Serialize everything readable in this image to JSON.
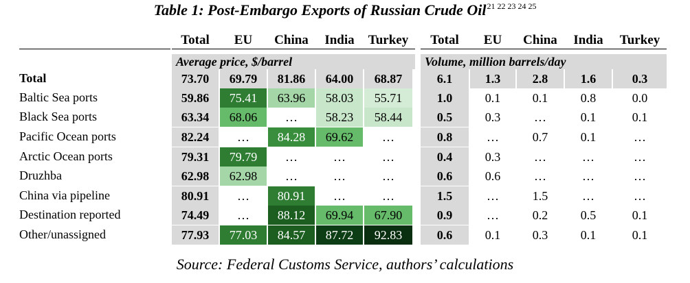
{
  "title": "Table 1: Post-Embargo Exports of Russian Crude Oil",
  "footnotes": "21 22 23 24 25",
  "column_headers": [
    "Total",
    "EU",
    "China",
    "India",
    "Turkey",
    "Total",
    "EU",
    "China",
    "India",
    "Turkey"
  ],
  "price_subheader": "Average price, $/barrel",
  "volume_subheader": "Volume, million barrels/day",
  "rows": [
    {
      "label": "Total",
      "price": [
        "73.70",
        "69.79",
        "81.86",
        "64.00",
        "68.87"
      ],
      "volume": [
        "6.1",
        "1.3",
        "2.8",
        "1.6",
        "0.3"
      ]
    },
    {
      "label": "Baltic Sea ports",
      "price": [
        "59.86",
        "75.41",
        "63.96",
        "58.03",
        "55.71"
      ],
      "volume": [
        "1.0",
        "0.1",
        "0.1",
        "0.8",
        "0.0"
      ]
    },
    {
      "label": "Black Sea ports",
      "price": [
        "63.34",
        "68.06",
        "…",
        "58.23",
        "58.44"
      ],
      "volume": [
        "0.5",
        "0.3",
        "…",
        "0.1",
        "0.1"
      ]
    },
    {
      "label": "Pacific Ocean ports",
      "price": [
        "82.24",
        "…",
        "84.28",
        "69.62",
        "…"
      ],
      "volume": [
        "0.8",
        "…",
        "0.7",
        "0.1",
        "…"
      ]
    },
    {
      "label": "Arctic Ocean ports",
      "price": [
        "79.31",
        "79.79",
        "…",
        "…",
        "…"
      ],
      "volume": [
        "0.4",
        "0.3",
        "…",
        "…",
        "…"
      ]
    },
    {
      "label": "Druzhba",
      "price": [
        "62.98",
        "62.98",
        "…",
        "…",
        "…"
      ],
      "volume": [
        "0.6",
        "0.6",
        "…",
        "…",
        "…"
      ]
    },
    {
      "label": "China via pipeline",
      "price": [
        "80.91",
        "…",
        "80.91",
        "…",
        "…"
      ],
      "volume": [
        "1.5",
        "…",
        "1.5",
        "…",
        "…"
      ]
    },
    {
      "label": "Destination reported",
      "price": [
        "74.49",
        "…",
        "88.12",
        "69.94",
        "67.90"
      ],
      "volume": [
        "0.9",
        "…",
        "0.2",
        "0.5",
        "0.1"
      ]
    },
    {
      "label": "Other/unassigned",
      "price": [
        "77.93",
        "77.03",
        "84.57",
        "87.72",
        "92.83"
      ],
      "volume": [
        "0.6",
        "0.1",
        "0.3",
        "0.1",
        "0.1"
      ]
    }
  ],
  "price_fill_colors": [
    [
      null,
      null,
      null,
      null
    ],
    [
      "#2e7d32",
      "#a5d6a7",
      "#c8e6c9",
      "#d4ecd5"
    ],
    [
      "#66bb6a",
      null,
      "#c8e6c9",
      "#c8e6c9"
    ],
    [
      null,
      "#388e3c",
      "#66bb6a",
      null
    ],
    [
      "#2e7d32",
      null,
      null,
      null
    ],
    [
      "#a5d6a7",
      null,
      null,
      null
    ],
    [
      null,
      "#2e7d32",
      null,
      null
    ],
    [
      null,
      "#1b5e20",
      "#66bb6a",
      "#66bb6a"
    ],
    [
      "#2e7d32",
      "#1b5e20",
      "#0d3d14",
      "#0a2e10"
    ]
  ],
  "white_text_on_fill_colors": [
    "#2e7d32",
    "#388e3c",
    "#1b5e20",
    "#0d3d14",
    "#0a2e10"
  ],
  "source": "Source: Federal Customs Service, authors’ calculations"
}
